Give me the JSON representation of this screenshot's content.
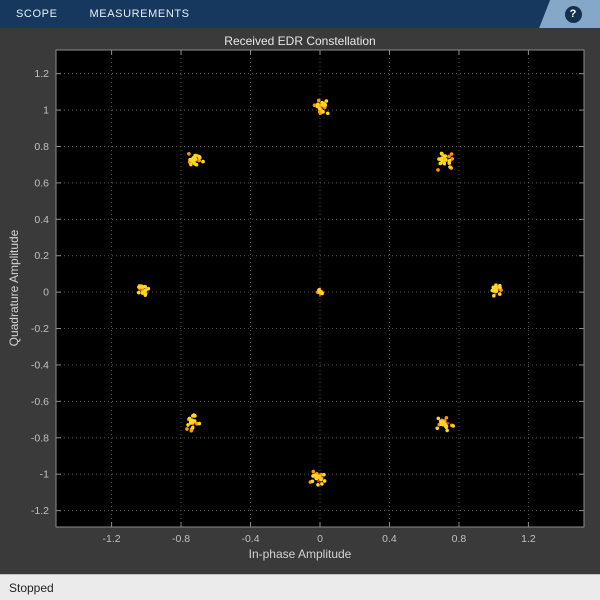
{
  "toolbar": {
    "tabs": [
      {
        "label": "SCOPE"
      },
      {
        "label": "MEASUREMENTS"
      }
    ],
    "help_label": "?"
  },
  "status_bar": {
    "text": "Stopped"
  },
  "chart_data": {
    "type": "scatter",
    "title": "Received EDR Constellation",
    "xlabel": "In-phase Amplitude",
    "ylabel": "Quadrature Amplitude",
    "xlim": [
      -1.52,
      1.52
    ],
    "ylim": [
      -1.29,
      1.33
    ],
    "x_ticks": [
      -1.2,
      -0.8,
      -0.4,
      0,
      0.4,
      0.8,
      1.2
    ],
    "y_ticks": [
      -1.2,
      -1,
      -0.8,
      -0.6,
      -0.4,
      -0.2,
      0,
      0.2,
      0.4,
      0.6,
      0.8,
      1,
      1.2
    ],
    "grid": true,
    "legend": "none",
    "background": "#000000",
    "grid_color": "#545454",
    "frame_color": "#8c8c8c",
    "tick_label_color": "#c0c0c0",
    "series": [
      {
        "name": "reference-constellation",
        "marker": "plus",
        "color": "#e8362a",
        "points": [
          [
            0,
            0
          ],
          [
            1.01,
            0.01
          ],
          [
            0.72,
            0.72
          ],
          [
            0.01,
            1.02
          ],
          [
            -0.72,
            0.73
          ],
          [
            -1.02,
            0.01
          ],
          [
            -0.73,
            -0.72
          ],
          [
            -0.01,
            -1.02
          ],
          [
            0.72,
            -0.72
          ]
        ]
      },
      {
        "name": "received-symbols",
        "marker": "dot",
        "colors": [
          "#ff9800",
          "#ffd91f"
        ],
        "clusters": [
          {
            "x": 0,
            "y": 0,
            "spread": 0.008,
            "count": 8
          },
          {
            "x": 1.01,
            "y": 0.01,
            "spread": 0.02,
            "count": 18
          },
          {
            "x": 0.72,
            "y": 0.72,
            "spread": 0.03,
            "count": 22
          },
          {
            "x": 0.01,
            "y": 1.02,
            "spread": 0.026,
            "count": 22
          },
          {
            "x": -0.72,
            "y": 0.73,
            "spread": 0.03,
            "count": 22
          },
          {
            "x": -1.02,
            "y": 0.01,
            "spread": 0.02,
            "count": 18
          },
          {
            "x": -0.73,
            "y": -0.72,
            "spread": 0.03,
            "count": 22
          },
          {
            "x": -0.01,
            "y": -1.02,
            "spread": 0.026,
            "count": 22
          },
          {
            "x": 0.72,
            "y": -0.72,
            "spread": 0.03,
            "count": 22
          }
        ]
      }
    ]
  }
}
